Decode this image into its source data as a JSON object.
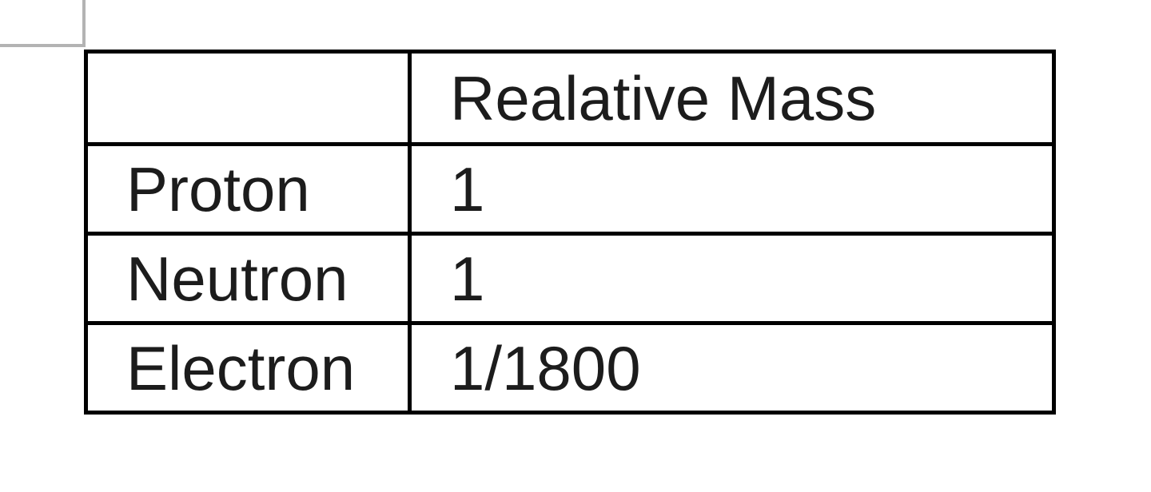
{
  "colors": {
    "border": "#000000",
    "text": "#1c1c1c",
    "gridline_guide": "#b3b3b3",
    "background": "#ffffff"
  },
  "table": {
    "columns": [
      "",
      "Realative Mass"
    ],
    "rows": [
      {
        "label": "Proton",
        "value": "1"
      },
      {
        "label": "Neutron",
        "value": "1"
      },
      {
        "label": "Electron",
        "value": "1/1800"
      }
    ]
  },
  "chart_data": {
    "type": "table",
    "title": "Realative Mass",
    "categories": [
      "Proton",
      "Neutron",
      "Electron"
    ],
    "values": [
      "1",
      "1",
      "1/1800"
    ]
  }
}
